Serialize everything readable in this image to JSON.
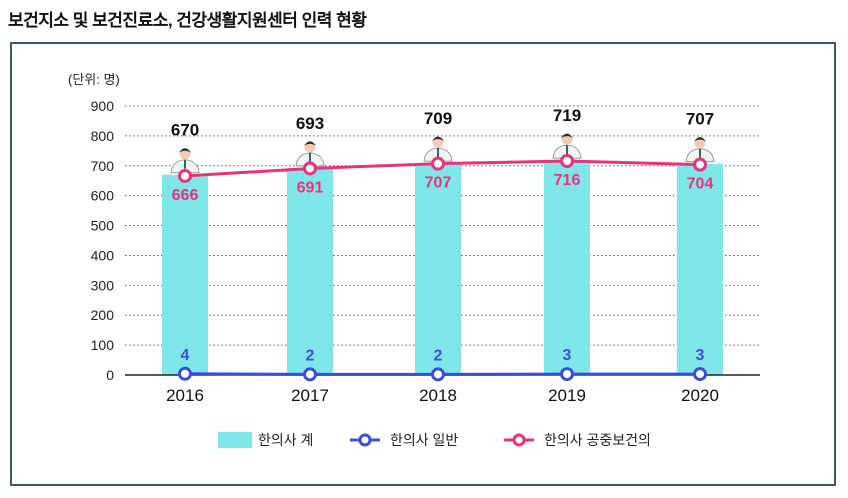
{
  "title": "보건지소 및 보건진료소, 건강생활지원센터 인력 현황",
  "chart_data": {
    "type": "bar+line",
    "unit_label": "(단위: 명)",
    "categories": [
      "2016",
      "2017",
      "2018",
      "2019",
      "2020"
    ],
    "ylim": [
      0,
      900
    ],
    "yticks": [
      0,
      100,
      200,
      300,
      400,
      500,
      600,
      700,
      800,
      900
    ],
    "grid": true,
    "legend_position": "bottom",
    "series": [
      {
        "name": "한의사 계",
        "type": "bar",
        "color": "#7fe6ea",
        "values": [
          670,
          693,
          709,
          719,
          707
        ]
      },
      {
        "name": "한의사 일반",
        "type": "line",
        "color": "#3b4fd6",
        "values": [
          4,
          2,
          2,
          3,
          3
        ]
      },
      {
        "name": "한의사 공중보건의",
        "type": "line",
        "color": "#e8337a",
        "values": [
          666,
          691,
          707,
          716,
          704
        ]
      }
    ]
  }
}
